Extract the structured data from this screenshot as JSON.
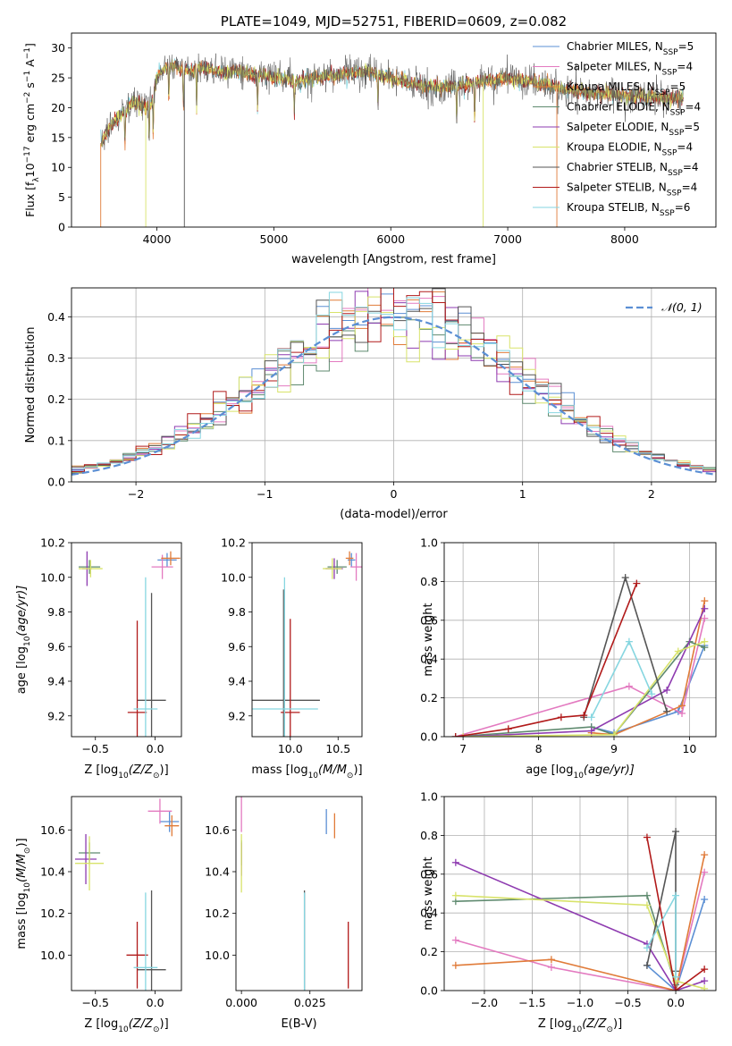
{
  "colors": {
    "chabrier_miles": "#5b8fd4",
    "salpeter_miles": "#e37ac0",
    "kroupa_miles": "#e07b39",
    "chabrier_elodie": "#5f8a6f",
    "salpeter_elodie": "#8e3bb0",
    "kroupa_elodie": "#d8e36a",
    "chabrier_stelib": "#555555",
    "salpeter_stelib": "#b11a1a",
    "kroupa_stelib": "#86d6e0",
    "gaussian": "#5b8fd4",
    "grid": "#b0b0b0"
  },
  "chart_data": [
    {
      "id": "spectrum",
      "type": "line",
      "title": "PLATE=1049, MJD=52751, FIBERID=0609, z=0.082",
      "xlabel": "wavelength [Angstrom, rest frame]",
      "ylabel": "Flux [f",
      "ylabel_rest": "10",
      "ylabel_exp1": "−17",
      "ylabel_units": " erg cm",
      "ylabel_exp2": "−2",
      "ylabel_s": " s",
      "ylabel_exp3": "−1",
      "ylabel_end": " A",
      "ylabel_exp4": "−1",
      "ylabel_close": "]",
      "xlim": [
        3270,
        8780
      ],
      "ylim": [
        0,
        32.5
      ],
      "xticks": [
        "4000",
        "5000",
        "6000",
        "7000",
        "8000"
      ],
      "xtick_values": [
        4000,
        5000,
        6000,
        7000,
        8000
      ],
      "yticks": [
        "0",
        "5",
        "10",
        "15",
        "20",
        "25",
        "30"
      ],
      "ytick_values": [
        0,
        5,
        10,
        15,
        20,
        25,
        30
      ],
      "legend": [
        {
          "text": "Chabrier MILES, N",
          "sub": "SSP",
          "tail": "=5",
          "color_key": "chabrier_miles"
        },
        {
          "text": "Salpeter MILES, N",
          "sub": "SSP",
          "tail": "=4",
          "color_key": "salpeter_miles"
        },
        {
          "text": "Kroupa MILES, N",
          "sub": "SSP",
          "tail": "=5",
          "color_key": "kroupa_miles"
        },
        {
          "text": "Chabrier ELODIE, N",
          "sub": "SSP",
          "tail": "=4",
          "color_key": "chabrier_elodie"
        },
        {
          "text": "Salpeter ELODIE, N",
          "sub": "SSP",
          "tail": "=5",
          "color_key": "salpeter_elodie"
        },
        {
          "text": "Kroupa ELODIE, N",
          "sub": "SSP",
          "tail": "=4",
          "color_key": "kroupa_elodie"
        },
        {
          "text": "Chabrier STELIB, N",
          "sub": "SSP",
          "tail": "=4",
          "color_key": "chabrier_stelib"
        },
        {
          "text": "Salpeter STELIB, N",
          "sub": "SSP",
          "tail": "=4",
          "color_key": "salpeter_stelib"
        },
        {
          "text": "Kroupa STELIB, N",
          "sub": "SSP",
          "tail": "=6",
          "color_key": "kroupa_stelib"
        }
      ],
      "continuum": {
        "x": [
          3520,
          3600,
          3700,
          3800,
          3900,
          3950,
          4000,
          4050,
          4100,
          4200,
          4300,
          4400,
          4500,
          4700,
          5000,
          5200,
          5500,
          5800,
          6000,
          6300,
          6500,
          6700,
          7000,
          7300,
          7500,
          8000,
          8500
        ],
        "y": [
          14,
          17,
          19,
          21,
          20,
          20,
          25,
          26.5,
          27,
          26.5,
          26,
          26.8,
          26,
          26,
          25,
          24.5,
          25.5,
          26,
          25,
          23.5,
          23.5,
          24,
          25,
          24,
          23,
          22,
          21.5
        ]
      }
    },
    {
      "id": "residuals",
      "type": "line",
      "xlabel": "(data-model)/error",
      "ylabel": "Normed distribution",
      "xlim": [
        -2.5,
        2.5
      ],
      "ylim": [
        0,
        0.47
      ],
      "xticks": [
        "−2",
        "−1",
        "0",
        "1",
        "2"
      ],
      "xtick_values": [
        -2,
        -1,
        0,
        1,
        2
      ],
      "yticks": [
        "0.0",
        "0.1",
        "0.2",
        "0.3",
        "0.4"
      ],
      "ytick_values": [
        0,
        0.1,
        0.2,
        0.3,
        0.4
      ],
      "legend_label": "𝒩(0, 1)",
      "gaussian": {
        "mu": 0,
        "sigma": 1
      }
    },
    {
      "id": "age_vs_Z",
      "type": "scatter",
      "xlabel": "Z [log",
      "xlabel_sub": "10",
      "xlabel_mid": "(Z/Z",
      "xlabel_sub2": "⊙",
      "xlabel_end": ")]",
      "ylabel": "age  [log",
      "ylabel_sub": "10",
      "ylabel_end": "(age/yr)]",
      "xlim": [
        -0.7,
        0.22
      ],
      "ylim": [
        9.08,
        10.2
      ],
      "xticks": [
        "−0.5",
        "0.0"
      ],
      "xtick_values": [
        -0.5,
        0.0
      ],
      "yticks": [
        "9.2",
        "9.4",
        "9.6",
        "9.8",
        "10.0",
        "10.2"
      ],
      "ytick_values": [
        9.2,
        9.4,
        9.6,
        9.8,
        10.0,
        10.2
      ],
      "points": [
        {
          "series": "chabrier_miles",
          "x": 0.1,
          "y": 10.1,
          "xerr": 0.08,
          "yerr": 0.04
        },
        {
          "series": "salpeter_miles",
          "x": 0.06,
          "y": 10.06,
          "xerr": 0.09,
          "yerr": 0.07
        },
        {
          "series": "kroupa_miles",
          "x": 0.13,
          "y": 10.11,
          "xerr": 0.08,
          "yerr": 0.04
        },
        {
          "series": "chabrier_elodie",
          "x": -0.55,
          "y": 10.06,
          "xerr": 0.09,
          "yerr": 0.04
        },
        {
          "series": "salpeter_elodie",
          "x": -0.57,
          "y": 10.05,
          "xerr": 0.04,
          "yerr": 0.1
        },
        {
          "series": "kroupa_elodie",
          "x": -0.54,
          "y": 10.05,
          "xerr": 0.1,
          "yerr": 0.05
        },
        {
          "series": "chabrier_stelib",
          "x": -0.03,
          "y": 9.29,
          "xerr": 0.12,
          "yerr": 0.62
        },
        {
          "series": "salpeter_stelib",
          "x": -0.15,
          "y": 9.22,
          "xerr": 0.08,
          "yerr": 0.53
        },
        {
          "series": "kroupa_stelib",
          "x": -0.08,
          "y": 9.24,
          "xerr": 0.1,
          "yerr": 0.76
        }
      ]
    },
    {
      "id": "age_vs_mass",
      "type": "scatter",
      "xlabel": "mass [log",
      "xlabel_sub": "10",
      "xlabel_end": "(M/M",
      "xlabel_sub2": "⊙",
      "xlabel_close": ")]",
      "xlim": [
        9.6,
        10.75
      ],
      "ylim": [
        9.08,
        10.2
      ],
      "xticks": [
        "10.0",
        "10.5"
      ],
      "xtick_values": [
        10.0,
        10.5
      ],
      "yticks": [
        "9.2",
        "9.4",
        "9.6",
        "9.8",
        "10.0",
        "10.2"
      ],
      "ytick_values": [
        9.2,
        9.4,
        9.6,
        9.8,
        10.0,
        10.2
      ],
      "points": [
        {
          "series": "chabrier_miles",
          "x": 10.64,
          "y": 10.1,
          "xerr": 0.04,
          "yerr": 0.04
        },
        {
          "series": "salpeter_miles",
          "x": 10.69,
          "y": 10.06,
          "xerr": 0.06,
          "yerr": 0.08
        },
        {
          "series": "kroupa_miles",
          "x": 10.62,
          "y": 10.11,
          "xerr": 0.04,
          "yerr": 0.04
        },
        {
          "series": "chabrier_elodie",
          "x": 10.49,
          "y": 10.06,
          "xerr": 0.1,
          "yerr": 0.04
        },
        {
          "series": "salpeter_elodie",
          "x": 10.46,
          "y": 10.05,
          "xerr": 0.09,
          "yerr": 0.06
        },
        {
          "series": "kroupa_elodie",
          "x": 10.44,
          "y": 10.05,
          "xerr": 0.1,
          "yerr": 0.06
        },
        {
          "series": "chabrier_stelib",
          "x": 9.93,
          "y": 9.29,
          "xerr": 0.38,
          "yerr": 0.64
        },
        {
          "series": "salpeter_stelib",
          "x": 10.0,
          "y": 9.22,
          "xerr": 0.1,
          "yerr": 0.54
        },
        {
          "series": "kroupa_stelib",
          "x": 9.94,
          "y": 9.24,
          "xerr": 0.35,
          "yerr": 0.76
        }
      ]
    },
    {
      "id": "weight_vs_age",
      "type": "line",
      "xlabel": "age  [log",
      "xlabel_sub": "10",
      "xlabel_end": "(age/yr)]",
      "ylabel": "mass weight",
      "xlim": [
        6.75,
        10.35
      ],
      "ylim": [
        0,
        1.0
      ],
      "xticks": [
        "7",
        "8",
        "9",
        "10"
      ],
      "xtick_values": [
        7,
        8,
        9,
        10
      ],
      "yticks": [
        "0.0",
        "0.2",
        "0.4",
        "0.6",
        "0.8",
        "1.0"
      ],
      "ytick_values": [
        0,
        0.2,
        0.4,
        0.6,
        0.8,
        1.0
      ],
      "series": [
        {
          "name": "chabrier_miles",
          "x": [
            8.7,
            9.0,
            9.85,
            10.2
          ],
          "y": [
            0.05,
            0.02,
            0.13,
            0.47
          ]
        },
        {
          "name": "salpeter_miles",
          "x": [
            6.9,
            9.2,
            9.9,
            10.2
          ],
          "y": [
            0.0,
            0.26,
            0.12,
            0.61
          ]
        },
        {
          "name": "kroupa_miles",
          "x": [
            8.7,
            9.0,
            9.9,
            10.2
          ],
          "y": [
            0.02,
            0.01,
            0.16,
            0.7
          ]
        },
        {
          "name": "chabrier_elodie",
          "x": [
            6.9,
            8.7,
            9.0,
            10.0,
            10.2
          ],
          "y": [
            0.0,
            0.05,
            0.01,
            0.49,
            0.46
          ]
        },
        {
          "name": "salpeter_elodie",
          "x": [
            7.0,
            8.7,
            9.7,
            10.2
          ],
          "y": [
            0.0,
            0.03,
            0.24,
            0.66
          ]
        },
        {
          "name": "kroupa_elodie",
          "x": [
            7.0,
            9.0,
            9.85,
            10.2
          ],
          "y": [
            0.0,
            0.01,
            0.44,
            0.49
          ]
        },
        {
          "name": "chabrier_stelib",
          "x": [
            8.6,
            9.15,
            9.7
          ],
          "y": [
            0.1,
            0.82,
            0.13
          ]
        },
        {
          "name": "salpeter_stelib",
          "x": [
            6.9,
            7.6,
            8.3,
            8.6,
            9.3
          ],
          "y": [
            0.0,
            0.04,
            0.1,
            0.11,
            0.79
          ]
        },
        {
          "name": "kroupa_stelib",
          "x": [
            8.7,
            9.2,
            9.5
          ],
          "y": [
            0.1,
            0.49,
            0.22
          ]
        }
      ]
    },
    {
      "id": "mass_vs_Z",
      "type": "scatter",
      "xlabel": "Z [log",
      "xlabel_sub": "10",
      "xlabel_mid": "(Z/Z",
      "xlabel_sub2": "⊙",
      "xlabel_end": ")]",
      "ylabel": "mass [log",
      "ylabel_sub": "10",
      "ylabel_mid": "(M/M",
      "ylabel_sub2": "⊙",
      "ylabel_end": ")]",
      "xlim": [
        -0.7,
        0.22
      ],
      "ylim": [
        9.83,
        10.76
      ],
      "xticks": [
        "−0.5",
        "0.0"
      ],
      "xtick_values": [
        -0.5,
        0.0
      ],
      "yticks": [
        "10.0",
        "10.2",
        "10.4",
        "10.6"
      ],
      "ytick_values": [
        10.0,
        10.2,
        10.4,
        10.6
      ],
      "points": [
        {
          "series": "chabrier_miles",
          "x": 0.12,
          "y": 10.64,
          "xerr": 0.08,
          "yerr": 0.05
        },
        {
          "series": "salpeter_miles",
          "x": 0.04,
          "y": 10.69,
          "xerr": 0.1,
          "yerr": 0.06
        },
        {
          "series": "kroupa_miles",
          "x": 0.14,
          "y": 10.62,
          "xerr": 0.06,
          "yerr": 0.05
        },
        {
          "series": "chabrier_elodie",
          "x": -0.55,
          "y": 10.49,
          "xerr": 0.09,
          "yerr": 0.05
        },
        {
          "series": "salpeter_elodie",
          "x": -0.58,
          "y": 10.46,
          "xerr": 0.09,
          "yerr": 0.12
        },
        {
          "series": "kroupa_elodie",
          "x": -0.55,
          "y": 10.44,
          "xerr": 0.12,
          "yerr": 0.13
        },
        {
          "series": "chabrier_stelib",
          "x": -0.03,
          "y": 9.93,
          "xerr": 0.12,
          "yerr": 0.38
        },
        {
          "series": "salpeter_stelib",
          "x": -0.15,
          "y": 10.0,
          "xerr": 0.09,
          "yerr": 0.16
        },
        {
          "series": "kroupa_stelib",
          "x": -0.08,
          "y": 9.94,
          "xerr": 0.1,
          "yerr": 0.36
        }
      ]
    },
    {
      "id": "mass_vs_ebv",
      "type": "scatter",
      "xlabel": "E(B-V)",
      "xlim": [
        -0.002,
        0.044
      ],
      "ylim": [
        9.83,
        10.76
      ],
      "xticks": [
        "0.000",
        "0.025"
      ],
      "xtick_values": [
        0.0,
        0.025
      ],
      "yticks": [
        "10.0",
        "10.2",
        "10.4",
        "10.6"
      ],
      "ytick_values": [
        10.0,
        10.2,
        10.4,
        10.6
      ],
      "points": [
        {
          "series": "chabrier_miles",
          "x": 0.031,
          "y": 10.64,
          "yerr": 0.06
        },
        {
          "series": "salpeter_miles",
          "x": 0.0,
          "y": 10.69,
          "yerr": 0.1
        },
        {
          "series": "kroupa_miles",
          "x": 0.034,
          "y": 10.62,
          "yerr": 0.06
        },
        {
          "series": "chabrier_elodie",
          "x": 0.0,
          "y": 10.49,
          "yerr": 0.06
        },
        {
          "series": "salpeter_elodie",
          "x": 0.0,
          "y": 10.46,
          "yerr": 0.08
        },
        {
          "series": "kroupa_elodie",
          "x": 0.0,
          "y": 10.44,
          "yerr": 0.14
        },
        {
          "series": "chabrier_stelib",
          "x": 0.023,
          "y": 9.93,
          "yerr": 0.38
        },
        {
          "series": "salpeter_stelib",
          "x": 0.039,
          "y": 10.0,
          "yerr": 0.16
        },
        {
          "series": "kroupa_stelib",
          "x": 0.023,
          "y": 9.94,
          "yerr": 0.36
        }
      ]
    },
    {
      "id": "weight_vs_Z",
      "type": "line",
      "xlabel": "Z [log",
      "xlabel_sub": "10",
      "xlabel_mid": "(Z/Z",
      "xlabel_sub2": "⊙",
      "xlabel_end": ")]",
      "ylabel": "mass weight",
      "xlim": [
        -2.42,
        0.42
      ],
      "ylim": [
        0,
        1.0
      ],
      "xticks": [
        "−2.0",
        "−1.5",
        "−1.0",
        "−0.5",
        "0.0"
      ],
      "xtick_values": [
        -2.0,
        -1.5,
        -1.0,
        -0.5,
        0.0
      ],
      "yticks": [
        "0.0",
        "0.2",
        "0.4",
        "0.6",
        "0.8",
        "1.0"
      ],
      "ytick_values": [
        0,
        0.2,
        0.4,
        0.6,
        0.8,
        1.0
      ],
      "series": [
        {
          "name": "chabrier_miles",
          "x": [
            -0.3,
            0.0,
            0.3
          ],
          "y": [
            0.13,
            0.0,
            0.47
          ]
        },
        {
          "name": "salpeter_miles",
          "x": [
            -2.3,
            -1.3,
            0.0,
            0.3
          ],
          "y": [
            0.26,
            0.12,
            0.0,
            0.61
          ]
        },
        {
          "name": "kroupa_miles",
          "x": [
            -2.3,
            -1.3,
            0.0,
            0.3
          ],
          "y": [
            0.13,
            0.16,
            0.0,
            0.7
          ]
        },
        {
          "name": "chabrier_elodie",
          "x": [
            -2.3,
            -0.3,
            0.0
          ],
          "y": [
            0.46,
            0.49,
            0.03
          ]
        },
        {
          "name": "salpeter_elodie",
          "x": [
            -2.3,
            -0.3,
            0.0,
            0.3
          ],
          "y": [
            0.66,
            0.24,
            0.0,
            0.05
          ]
        },
        {
          "name": "kroupa_elodie",
          "x": [
            -2.3,
            -0.3,
            0.0,
            0.3
          ],
          "y": [
            0.49,
            0.44,
            0.05,
            0.01
          ]
        },
        {
          "name": "chabrier_stelib",
          "x": [
            -0.3,
            0.0,
            0.0
          ],
          "y": [
            0.13,
            0.82,
            0.1
          ]
        },
        {
          "name": "salpeter_stelib",
          "x": [
            -0.3,
            0.0,
            0.3
          ],
          "y": [
            0.79,
            0.0,
            0.11
          ]
        },
        {
          "name": "kroupa_stelib",
          "x": [
            -0.3,
            0.0,
            0.0
          ],
          "y": [
            0.22,
            0.49,
            0.07
          ]
        }
      ]
    }
  ]
}
